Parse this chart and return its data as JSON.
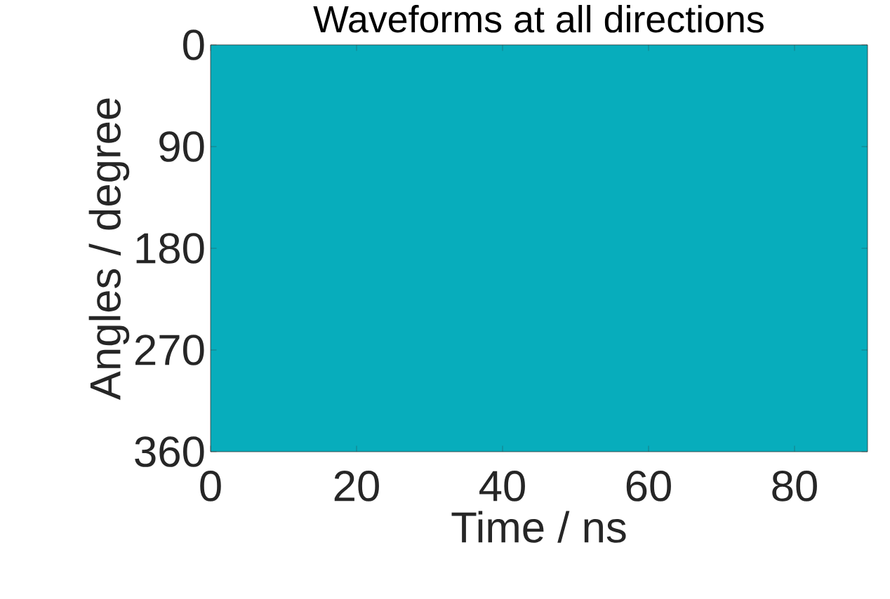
{
  "chart_data": {
    "type": "area",
    "title": "Waveforms at all directions",
    "xlabel": "Time / ns",
    "ylabel": "Angles / degree",
    "xlim": [
      0,
      90
    ],
    "ylim": [
      360,
      0
    ],
    "xticks": [
      0,
      20,
      40,
      60,
      80
    ],
    "yticks": [
      0,
      90,
      180,
      270,
      360
    ],
    "x": [
      0,
      90
    ],
    "values": [
      360,
      360
    ],
    "color": "#07adbc"
  }
}
